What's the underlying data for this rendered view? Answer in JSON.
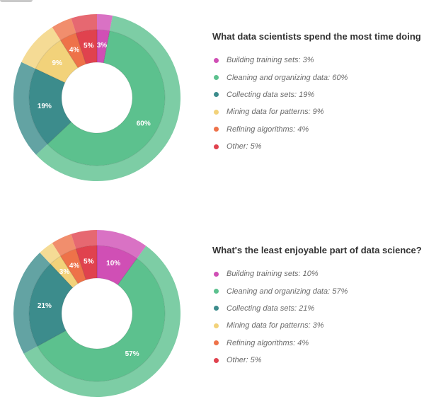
{
  "chart_data": [
    {
      "type": "pie",
      "title": "What data scientists spend the most time doing",
      "series": [
        {
          "name": "Building training sets",
          "legend": "Building training sets: 3%",
          "value": 3,
          "label": "3%",
          "color": "#d04fb5"
        },
        {
          "name": "Cleaning and organizing data",
          "legend": "Cleaning and organizing data: 60%",
          "value": 60,
          "label": "60%",
          "color": "#5cc18e"
        },
        {
          "name": "Collecting data sets",
          "legend": "Collecting data sets: 19%",
          "value": 19,
          "label": "19%",
          "color": "#3c8c8c"
        },
        {
          "name": "Mining data for patterns",
          "legend": "Mining data for patterns: 9%",
          "value": 9,
          "label": "9%",
          "color": "#f2d27a"
        },
        {
          "name": "Refining algorithms",
          "legend": "Refining algorithms: 4%",
          "value": 4,
          "label": "4%",
          "color": "#ee7249"
        },
        {
          "name": "Other",
          "legend": "Other: 5%",
          "value": 5,
          "label": "5%",
          "color": "#e0424e"
        }
      ]
    },
    {
      "type": "pie",
      "title": "What's the least enjoyable part of data science?",
      "series": [
        {
          "name": "Building training sets",
          "legend": "Building training sets: 10%",
          "value": 10,
          "label": "10%",
          "color": "#d04fb5"
        },
        {
          "name": "Cleaning and organizing data",
          "legend": "Cleaning and organizing data: 57%",
          "value": 57,
          "label": "57%",
          "color": "#5cc18e"
        },
        {
          "name": "Collecting data sets",
          "legend": "Collecting data sets: 21%",
          "value": 21,
          "label": "21%",
          "color": "#3c8c8c"
        },
        {
          "name": "Mining data for patterns",
          "legend": "Mining data for patterns: 3%",
          "value": 3,
          "label": "3%",
          "color": "#f2d27a"
        },
        {
          "name": "Refining algorithms",
          "legend": "Refining algorithms: 4%",
          "value": 4,
          "label": "4%",
          "color": "#ee7249"
        },
        {
          "name": "Other",
          "legend": "Other: 5%",
          "value": 5,
          "label": "5%",
          "color": "#e0424e"
        }
      ]
    }
  ]
}
